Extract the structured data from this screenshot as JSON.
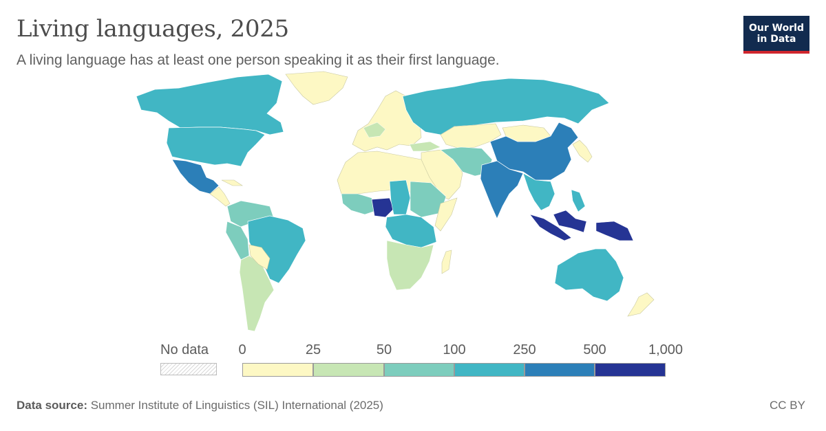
{
  "header": {
    "title": "Living languages, 2025",
    "subtitle": "A living language has at least one person speaking it as their first language."
  },
  "logo": {
    "line1": "Our World",
    "line2": "in Data"
  },
  "legend": {
    "nodata_label": "No data",
    "ticks": [
      "0",
      "25",
      "50",
      "100",
      "250",
      "500",
      "1,000"
    ],
    "colors": [
      "#fdf8c4",
      "#c7e6b4",
      "#7dcdbd",
      "#41b6c4",
      "#2c7fb8",
      "#253494"
    ]
  },
  "map": {
    "description_regions": [
      {
        "name": "Nigeria",
        "bin": 5
      },
      {
        "name": "Indonesia",
        "bin": 5
      },
      {
        "name": "Papua New Guinea",
        "bin": 5
      },
      {
        "name": "India",
        "bin": 4
      },
      {
        "name": "China",
        "bin": 4
      },
      {
        "name": "Mexico",
        "bin": 4
      },
      {
        "name": "Brazil",
        "bin": 3
      },
      {
        "name": "Russia",
        "bin": 3
      },
      {
        "name": "United States",
        "bin": 3
      },
      {
        "name": "Australia",
        "bin": 3
      }
    ]
  },
  "footer": {
    "source_label": "Data source:",
    "source_text": "Summer Institute of Linguistics (SIL) International (2025)",
    "license": "CC BY"
  }
}
